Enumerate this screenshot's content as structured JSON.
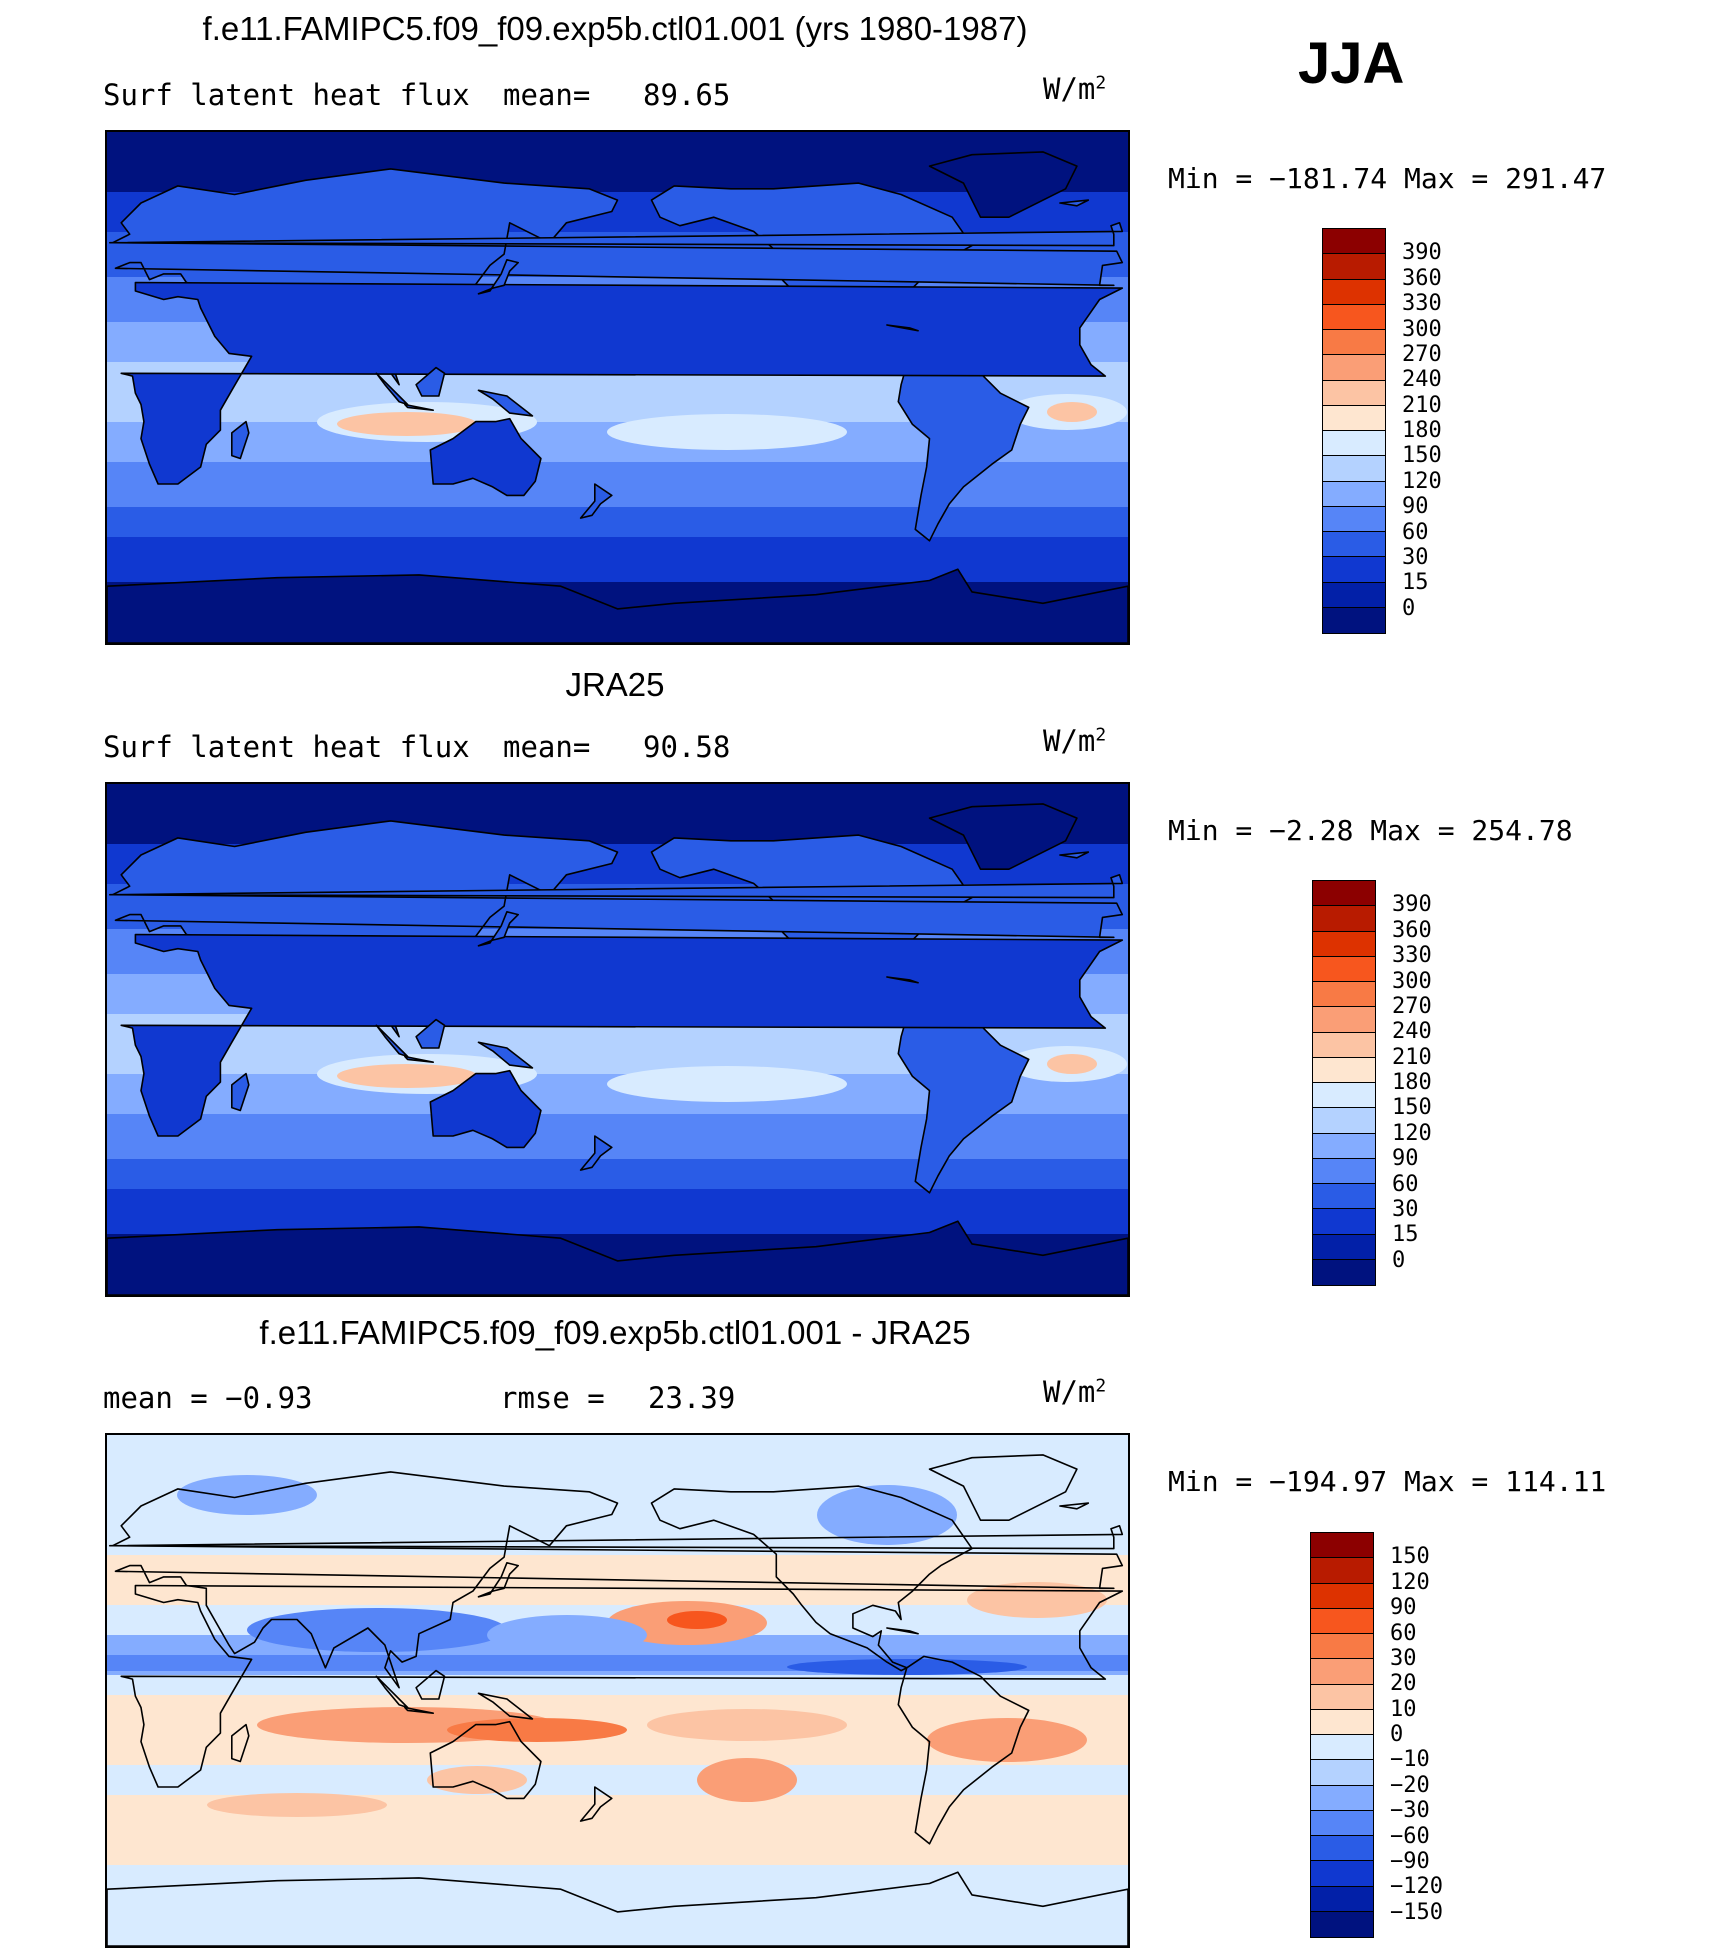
{
  "season": "JJA",
  "units_base": "W/m",
  "units_exp": "2",
  "colors": {
    "deep_blue": "#00127f",
    "mid_blue": "#1a47e6",
    "light_blue": "#d6e9ff",
    "peach": "#ffe6d2",
    "orange": "#f7693a",
    "dark_red": "#8c0000",
    "coast": "#000000"
  },
  "panels": [
    {
      "id": "model",
      "title": "f.e11.FAMIPC5.f09_f09.exp5b.ctl01.001 (yrs 1980-1987)",
      "left_text": "Surf latent heat flux",
      "mid_label": "mean=",
      "mid_value": "89.65",
      "stats": "Min = −181.74 Max = 291.47",
      "field": "abs",
      "colorbar_labels": [
        "390",
        "360",
        "330",
        "300",
        "270",
        "240",
        "210",
        "180",
        "150",
        "120",
        "90",
        "60",
        "30",
        "15",
        "0"
      ],
      "colorbar_colors": [
        "#8c0000",
        "#b81b00",
        "#dd3200",
        "#f7561e",
        "#f87a45",
        "#fa9e76",
        "#fcc4a4",
        "#fee6d0",
        "#d8ebff",
        "#b4d2ff",
        "#84acff",
        "#5685f7",
        "#2a5ce6",
        "#1038d0",
        "#0220a8",
        "#00127f"
      ]
    },
    {
      "id": "obs",
      "title": "JRA25",
      "left_text": "Surf latent heat flux",
      "mid_label": "mean=",
      "mid_value": "90.58",
      "stats": "Min =  −2.28 Max = 254.78",
      "field": "abs",
      "colorbar_labels": [
        "390",
        "360",
        "330",
        "300",
        "270",
        "240",
        "210",
        "180",
        "150",
        "120",
        "90",
        "60",
        "30",
        "15",
        "0"
      ],
      "colorbar_colors": [
        "#8c0000",
        "#b81b00",
        "#dd3200",
        "#f7561e",
        "#f87a45",
        "#fa9e76",
        "#fcc4a4",
        "#fee6d0",
        "#d8ebff",
        "#b4d2ff",
        "#84acff",
        "#5685f7",
        "#2a5ce6",
        "#1038d0",
        "#0220a8",
        "#00127f"
      ]
    },
    {
      "id": "diff",
      "title": "f.e11.FAMIPC5.f09_f09.exp5b.ctl01.001 - JRA25",
      "left_text": "mean =   −0.93",
      "mid_label": "rmse =",
      "mid_value": "23.39",
      "stats": "Min = −194.97 Max = 114.11",
      "field": "diff",
      "colorbar_labels": [
        "150",
        "120",
        "90",
        "60",
        "30",
        "20",
        "10",
        "0",
        "−10",
        "−20",
        "−30",
        "−60",
        "−90",
        "−120",
        "−150"
      ],
      "colorbar_colors": [
        "#8c0000",
        "#b81b00",
        "#dd3200",
        "#f7561e",
        "#f87a45",
        "#fa9e76",
        "#fcc4a4",
        "#fee6d0",
        "#d8ebff",
        "#b4d2ff",
        "#84acff",
        "#5685f7",
        "#2a5ce6",
        "#1038d0",
        "#0220a8",
        "#00127f"
      ]
    }
  ]
}
